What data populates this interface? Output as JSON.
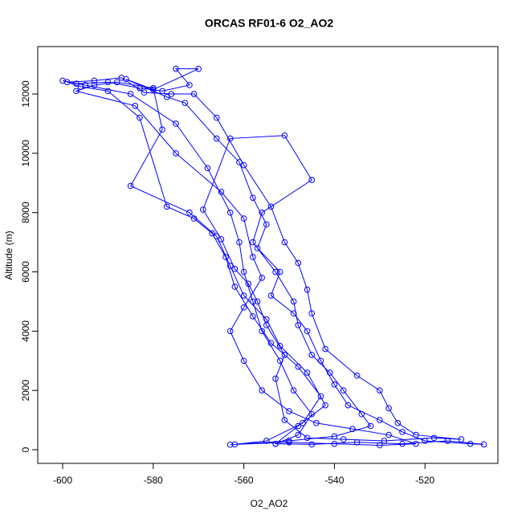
{
  "chart_data": {
    "type": "scatter",
    "title": "ORCAS RF01-6 O2_AO2",
    "x_label": "O2_AO2",
    "y_label": "Altitude (m)",
    "connect": true,
    "color": "#0000ff",
    "x": [
      -553,
      -548,
      -545,
      -549,
      -552,
      -556,
      -558,
      -560,
      -561,
      -563,
      -568,
      -575,
      -585,
      -595,
      -600,
      -597,
      -590,
      -583,
      -578,
      -572,
      -575,
      -570,
      -580,
      -586,
      -577,
      -573,
      -566,
      -561,
      -558,
      -555,
      -557,
      -552,
      -554,
      -549,
      -546,
      -543,
      -540,
      -537,
      -530,
      -525,
      -520,
      -510,
      -507,
      -515,
      -525,
      -535,
      -545,
      -553,
      -548,
      -542,
      -546,
      -552,
      -555,
      -560,
      -563,
      -566,
      -572,
      -585,
      -578,
      -580,
      -588,
      -593,
      -597,
      -584,
      -575,
      -565,
      -560,
      -558,
      -556,
      -560,
      -563,
      -560,
      -556,
      -550,
      -544,
      -536,
      -528,
      -522,
      -530,
      -540,
      -550,
      -562,
      -555,
      -547,
      -543,
      -548,
      -554,
      -558,
      -562,
      -564,
      -567,
      -571,
      -577,
      -583,
      -590,
      -596,
      -599,
      -593,
      -587,
      -582,
      -576,
      -571,
      -566,
      -560,
      -554,
      -551,
      -548,
      -546,
      -545,
      -542,
      -535,
      -530,
      -528,
      -526,
      -522,
      -512,
      -518,
      -529,
      -538,
      -546,
      -551,
      -553,
      -551,
      -555,
      -557,
      -559,
      -562,
      -565,
      -569,
      -563,
      -551,
      -545,
      -556,
      -558,
      -553,
      -549,
      -548,
      -545,
      -541,
      -538,
      -534,
      -532,
      -540,
      -550,
      -563
    ],
    "y": [
      200,
      500,
      1200,
      2000,
      3000,
      4000,
      5000,
      6000,
      7000,
      8000,
      9500,
      11000,
      12000,
      12300,
      12450,
      12350,
      12400,
      12200,
      12100,
      12300,
      12850,
      12850,
      12150,
      12500,
      11900,
      11700,
      10500,
      9700,
      8500,
      7600,
      6800,
      6000,
      5200,
      4600,
      4000,
      3000,
      2200,
      1500,
      1000,
      600,
      300,
      200,
      180,
      300,
      200,
      250,
      180,
      200,
      800,
      1500,
      2600,
      3500,
      4400,
      5200,
      6200,
      7200,
      8000,
      8900,
      10800,
      12200,
      12400,
      12300,
      12100,
      11600,
      10000,
      8700,
      7800,
      6500,
      5800,
      4800,
      4000,
      3000,
      2000,
      1300,
      900,
      700,
      500,
      200,
      150,
      200,
      250,
      180,
      300,
      900,
      1800,
      2800,
      3600,
      4500,
      5500,
      6500,
      7300,
      7800,
      8200,
      11200,
      12100,
      12250,
      12400,
      12450,
      12550,
      12050,
      12000,
      12000,
      11200,
      9600,
      8200,
      7000,
      6300,
      5400,
      4600,
      3400,
      2500,
      2000,
      1400,
      900,
      500,
      350,
      400,
      300,
      350,
      400,
      1000,
      2400,
      3200,
      4200,
      5000,
      5600,
      6100,
      7100,
      8100,
      10500,
      10600,
      9100,
      8000,
      7000,
      6000,
      5000,
      4200,
      3200,
      2600,
      2000,
      1200,
      800,
      450,
      300,
      170
    ],
    "xlim": [
      -605.5,
      -503.9
    ],
    "ylim": [
      -460,
      13600
    ],
    "xticks": [
      -600,
      -580,
      -560,
      -540,
      -520
    ],
    "yticks": [
      0,
      2000,
      4000,
      6000,
      8000,
      10000,
      12000
    ]
  }
}
